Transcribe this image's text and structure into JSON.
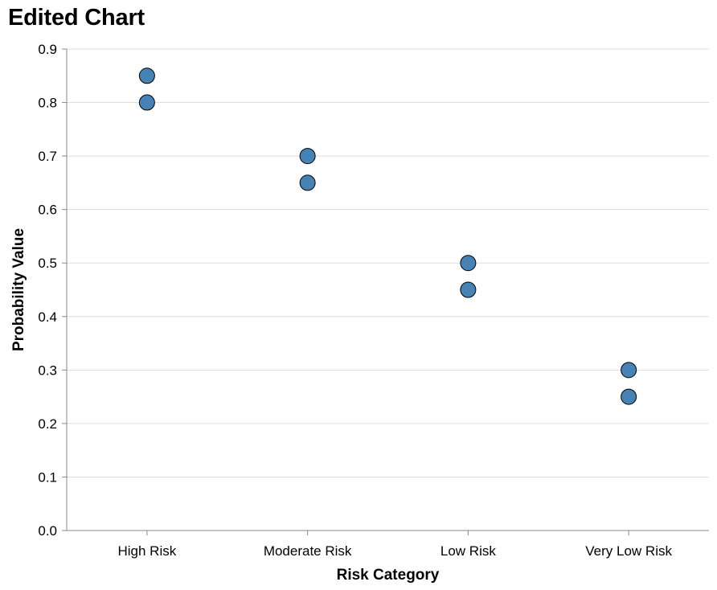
{
  "title": "Edited Chart",
  "chart_data": {
    "type": "scatter",
    "title": "Edited Chart",
    "xlabel": "Risk Category",
    "ylabel": "Probability Value",
    "categories": [
      "High Risk",
      "Moderate Risk",
      "Low Risk",
      "Very Low Risk"
    ],
    "points": [
      {
        "x": "High Risk",
        "y": 0.85
      },
      {
        "x": "High Risk",
        "y": 0.8
      },
      {
        "x": "Moderate Risk",
        "y": 0.7
      },
      {
        "x": "Moderate Risk",
        "y": 0.65
      },
      {
        "x": "Low Risk",
        "y": 0.5
      },
      {
        "x": "Low Risk",
        "y": 0.45
      },
      {
        "x": "Very Low Risk",
        "y": 0.3
      },
      {
        "x": "Very Low Risk",
        "y": 0.25
      }
    ],
    "ylim": [
      0,
      0.9
    ],
    "yticks": [
      "0.0",
      "0.1",
      "0.2",
      "0.3",
      "0.4",
      "0.5",
      "0.6",
      "0.7",
      "0.8",
      "0.9"
    ],
    "grid": true,
    "colors": {
      "point_fill": "#4682b4",
      "point_stroke": "#000000",
      "grid": "#dddddd",
      "axis": "#888888"
    }
  }
}
